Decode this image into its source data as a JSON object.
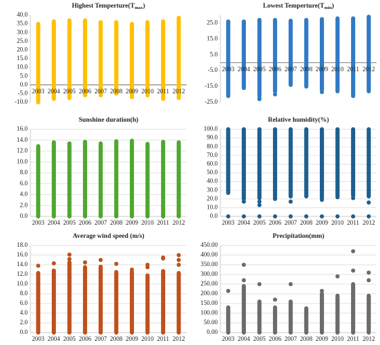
{
  "chart_data": [
    {
      "type": "range",
      "title": "Highest Temperture(T",
      "title_subscript": "max",
      "title_suffix": ")",
      "color": "#ffc000",
      "grid": false,
      "x_axis_at_zero": true,
      "categories": [
        "2003",
        "2004",
        "2005",
        "2006",
        "2007",
        "2008",
        "2009",
        "2010",
        "2011",
        "2012"
      ],
      "low": [
        -10,
        -8,
        -7.5,
        -6,
        -6,
        -5,
        -7,
        -6,
        -8,
        -7.5
      ],
      "high": [
        35,
        36.5,
        37,
        37,
        36,
        36,
        35,
        36,
        36.5,
        38.5
      ],
      "outliers": [
        [],
        [],
        [],
        [],
        [],
        [],
        [],
        [],
        [],
        []
      ],
      "ylim": [
        -10,
        40
      ],
      "yticks": [
        {
          "value": -10,
          "label": "-10.0"
        },
        {
          "value": -5,
          "label": "-5.0"
        },
        {
          "value": 0,
          "label": "0.0"
        },
        {
          "value": 5,
          "label": "5.0"
        },
        {
          "value": 10,
          "label": "10.0"
        },
        {
          "value": 15,
          "label": "15.0"
        },
        {
          "value": 20,
          "label": "20.0"
        },
        {
          "value": 25,
          "label": "25.0"
        },
        {
          "value": 30,
          "label": "30.0"
        },
        {
          "value": 35,
          "label": "35.0"
        },
        {
          "value": 40,
          "label": "40.0"
        }
      ]
    },
    {
      "type": "range",
      "title": "Lowest Temperture(T",
      "title_subscript": "min",
      "title_suffix": ")",
      "color": "#2f7ac6",
      "grid": false,
      "x_axis_at_zero": true,
      "categories": [
        "2003",
        "2004",
        "2005",
        "2006",
        "2007",
        "2008",
        "2009",
        "2010",
        "2011",
        "2012"
      ],
      "low": [
        -21,
        -16,
        -21,
        -18,
        -14,
        -15,
        -17,
        -18,
        -21,
        -18
      ],
      "high": [
        26,
        26,
        27,
        27,
        26.5,
        27,
        27.5,
        28,
        28,
        29
      ],
      "outliers": [
        [],
        [],
        [
          -23,
          -22.5
        ],
        [
          -20
        ],
        [],
        [],
        [
          -18.5
        ],
        [],
        [],
        []
      ],
      "ylim": [
        -25,
        30
      ],
      "yticks": [
        {
          "value": -25,
          "label": "-25.0"
        },
        {
          "value": -15,
          "label": "-15.0"
        },
        {
          "value": -5,
          "label": "-5.0"
        },
        {
          "value": 5,
          "label": "5.0"
        },
        {
          "value": 15,
          "label": "15.0"
        },
        {
          "value": 25,
          "label": "25.0"
        }
      ]
    },
    {
      "type": "range",
      "title": "Sunshine duration(h)",
      "color": "#4ea72e",
      "grid": true,
      "x_axis_at_zero": false,
      "categories": [
        "2003",
        "2004",
        "2005",
        "2006",
        "2007",
        "2008",
        "2009",
        "2010",
        "2011",
        "2012"
      ],
      "low": [
        0,
        0,
        0,
        0,
        0,
        0,
        0,
        0,
        0,
        0
      ],
      "high": [
        12.9,
        13.6,
        13.4,
        13.7,
        13.4,
        13.8,
        13.9,
        13.3,
        13.7,
        13.6
      ],
      "outliers": [
        [],
        [],
        [],
        [],
        [],
        [],
        [],
        [],
        [],
        []
      ],
      "ylim": [
        0,
        16
      ],
      "yticks": [
        {
          "value": 0,
          "label": "0.0"
        },
        {
          "value": 2,
          "label": "2.0"
        },
        {
          "value": 4,
          "label": "4.0"
        },
        {
          "value": 6,
          "label": "6.0"
        },
        {
          "value": 8,
          "label": "8.0"
        },
        {
          "value": 10,
          "label": "10.0"
        },
        {
          "value": 12,
          "label": "12.0"
        },
        {
          "value": 14,
          "label": "14.0"
        },
        {
          "value": 16,
          "label": "16.0"
        }
      ]
    },
    {
      "type": "range",
      "title": "Relative humidity(%)",
      "color": "#1d5f8f",
      "grid": true,
      "x_axis_at_zero": false,
      "categories": [
        "2003",
        "2004",
        "2005",
        "2006",
        "2007",
        "2008",
        "2009",
        "2010",
        "2011",
        "2012"
      ],
      "low": [
        27,
        20,
        21,
        20,
        23,
        23,
        21,
        22,
        24,
        23
      ],
      "high": [
        100,
        100,
        100,
        100,
        100,
        100,
        100,
        100,
        100,
        100
      ],
      "outliers": [
        [
          0
        ],
        [
          0,
          17
        ],
        [
          0,
          13,
          17
        ],
        [
          0
        ],
        [
          0,
          17
        ],
        [
          0
        ],
        [
          0,
          19
        ],
        [
          0
        ],
        [
          0,
          21
        ],
        [
          0,
          16
        ]
      ],
      "ylim": [
        0,
        100
      ],
      "yticks": [
        {
          "value": 0,
          "label": "0.0"
        },
        {
          "value": 10,
          "label": "10.0"
        },
        {
          "value": 20,
          "label": "20.0"
        },
        {
          "value": 30,
          "label": "30.0"
        },
        {
          "value": 40,
          "label": "40.0"
        },
        {
          "value": 50,
          "label": "50.0"
        },
        {
          "value": 60,
          "label": "60.0"
        },
        {
          "value": 70,
          "label": "70.0"
        },
        {
          "value": 80,
          "label": "80.0"
        },
        {
          "value": 90,
          "label": "90.0"
        },
        {
          "value": 100,
          "label": "100.0"
        }
      ]
    },
    {
      "type": "range",
      "title": "Average wind speed (m/s)",
      "color": "#c0501c",
      "grid": true,
      "x_axis_at_zero": false,
      "categories": [
        "2003",
        "2004",
        "2005",
        "2006",
        "2007",
        "2008",
        "2009",
        "2010",
        "2011",
        "2012"
      ],
      "low": [
        0,
        0,
        0,
        0,
        0,
        0,
        0,
        0,
        0,
        0
      ],
      "high": [
        12.3,
        12.8,
        14.5,
        13.5,
        13.6,
        12.5,
        12.5,
        11.8,
        12.7,
        12.3
      ],
      "outliers": [
        [
          13.8
        ],
        [
          14.3
        ],
        [
          15.2,
          16.1
        ],
        [
          14.5
        ],
        [
          15
        ],
        [
          14.2
        ],
        [
          13
        ],
        [
          14,
          13.5
        ],
        [
          15.5,
          15.3
        ],
        [
          16,
          15,
          14
        ]
      ],
      "ylim": [
        0,
        18
      ],
      "yticks": [
        {
          "value": 0,
          "label": "0.0"
        },
        {
          "value": 2,
          "label": "2.0"
        },
        {
          "value": 4,
          "label": "4.0"
        },
        {
          "value": 6,
          "label": "6.0"
        },
        {
          "value": 8,
          "label": "8.0"
        },
        {
          "value": 10,
          "label": "10.0"
        },
        {
          "value": 12,
          "label": "12.0"
        },
        {
          "value": 14,
          "label": "14.0"
        },
        {
          "value": 16,
          "label": "16.0"
        },
        {
          "value": 18,
          "label": "18.0"
        }
      ]
    },
    {
      "type": "range",
      "title": "Precipitation(mm)",
      "color": "#6b6b6b",
      "grid": true,
      "x_axis_at_zero": false,
      "categories": [
        "2003",
        "2004",
        "2005",
        "2006",
        "2007",
        "2008",
        "2009",
        "2010",
        "2011",
        "2012"
      ],
      "low": [
        0,
        0,
        0,
        0,
        0,
        0,
        0,
        0,
        0,
        0
      ],
      "high": [
        130,
        240,
        160,
        130,
        160,
        125,
        200,
        190,
        250,
        190
      ],
      "outliers": [
        [
          215
        ],
        [
          270,
          350
        ],
        [
          250
        ],
        [
          170
        ],
        [
          250
        ],
        [],
        [
          215
        ],
        [
          290
        ],
        [
          320,
          420
        ],
        [
          310,
          270
        ]
      ],
      "ylim": [
        0,
        450
      ],
      "yticks": [
        {
          "value": 0,
          "label": "0.00"
        },
        {
          "value": 50,
          "label": "50.00"
        },
        {
          "value": 100,
          "label": "100.00"
        },
        {
          "value": 150,
          "label": "150.00"
        },
        {
          "value": 200,
          "label": "200.00"
        },
        {
          "value": 250,
          "label": "250.00"
        },
        {
          "value": 300,
          "label": "300.00"
        },
        {
          "value": 350,
          "label": "350.00"
        },
        {
          "value": 400,
          "label": "400.00"
        },
        {
          "value": 450,
          "label": "450.00"
        }
      ]
    }
  ]
}
